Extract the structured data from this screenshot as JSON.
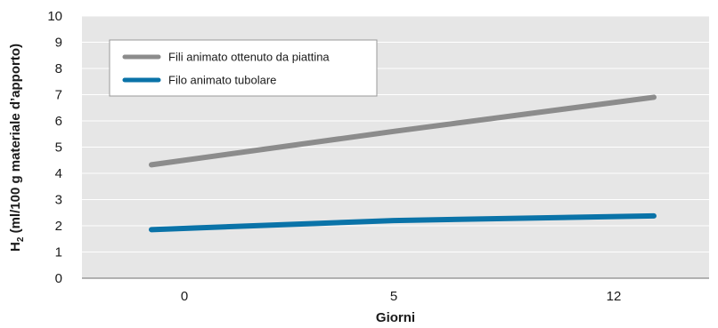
{
  "chart_data": {
    "type": "line",
    "categories": [
      "0",
      "5",
      "12"
    ],
    "series": [
      {
        "name": "Fili animato ottenuto da piattina",
        "values": [
          4.5,
          5.6,
          6.7
        ],
        "color": "#8c8c8c"
      },
      {
        "name": "Filo animato tubolare",
        "values": [
          1.9,
          2.2,
          2.35
        ],
        "color": "#0a73a8"
      }
    ],
    "xlabel": "Giorni",
    "ylabel": {
      "main": "H",
      "sub": "2",
      "rest": " (ml/100 g materiale d’apporto)"
    },
    "ylim": [
      0,
      10
    ],
    "yticks": [
      "0",
      "1",
      "2",
      "3",
      "4",
      "5",
      "6",
      "7",
      "8",
      "9",
      "10"
    ],
    "grid": true,
    "legend_position": "top-left",
    "plot_background": "#e6e6e6",
    "grid_color": "#ffffff"
  }
}
